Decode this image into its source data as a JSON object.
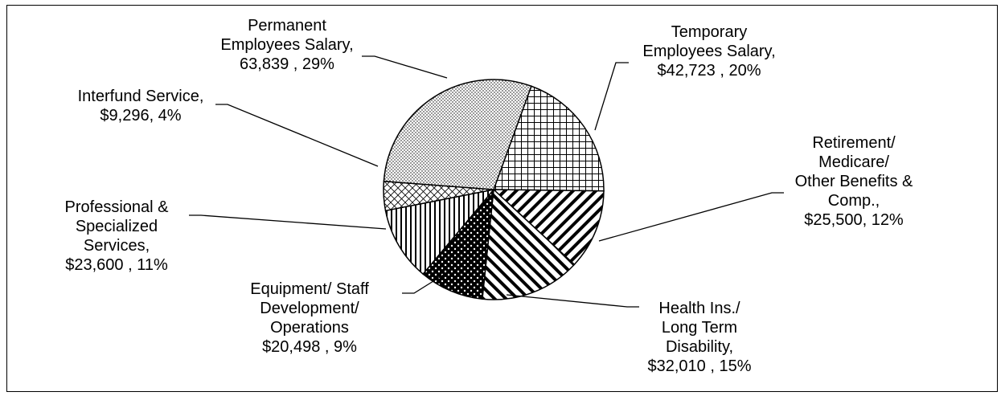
{
  "chart_data": {
    "type": "pie",
    "categories": [
      "Temporary\nEmployees Salary,",
      "Retirement/\nMedicare/\nOther Benefits &\nComp.,",
      "Health Ins./\nLong Term\nDisability,",
      "Equipment/ Staff\nDevelopment/\nOperations",
      "Professional &\nSpecialized\nServices,",
      "Interfund Service,",
      "Permanent\nEmployees Salary,"
    ],
    "values": [
      42723,
      25500,
      32010,
      20498,
      23600,
      9296,
      63839
    ],
    "value_labels": [
      "$42,723 , 20%",
      "$25,500, 12%",
      "$32,010 , 15%",
      "$20,498 , 9%",
      "$23,600 , 11%",
      "$9,296, 4%",
      "63,839 , 29%"
    ]
  }
}
